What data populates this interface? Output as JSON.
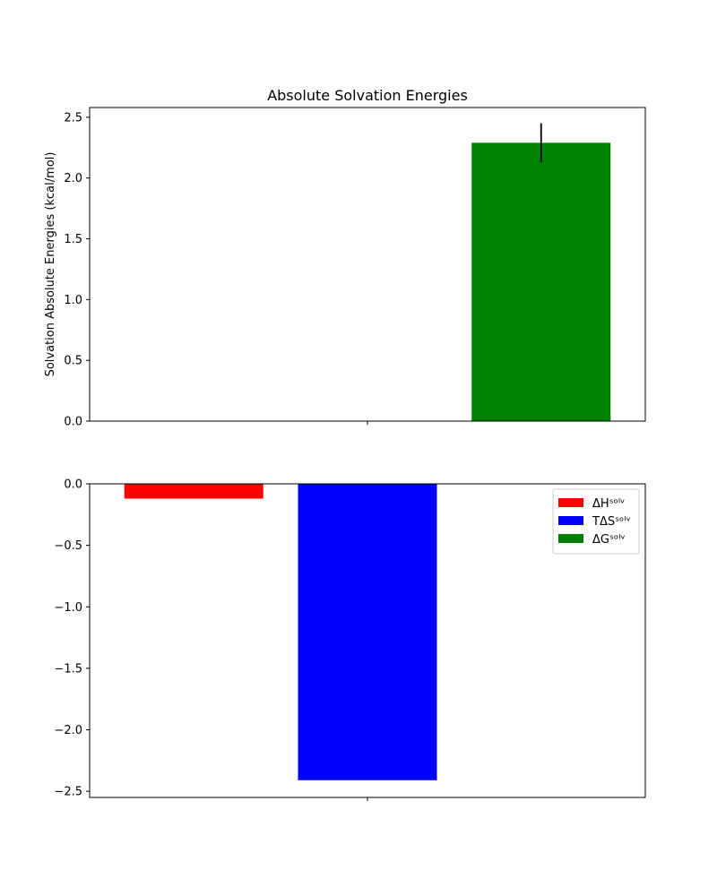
{
  "chart_data": [
    {
      "type": "bar",
      "title": "Absolute Solvation Energies",
      "xlabel": "",
      "ylabel": "Solvation Absolute Energies (kcal/mol)",
      "ylim": [
        0,
        2.58
      ],
      "xlim": [
        -0.6,
        2.6
      ],
      "yticks": [
        0.0,
        0.5,
        1.0,
        1.5,
        2.0,
        2.5
      ],
      "ytick_labels": [
        "0.0",
        "0.5",
        "1.0",
        "1.5",
        "2.0",
        "2.5"
      ],
      "xticks": [
        1.0
      ],
      "grid": false,
      "bars": [
        {
          "x": 2,
          "value": 2.29,
          "error": 0.16,
          "color": "#008000"
        }
      ]
    },
    {
      "type": "bar",
      "title": "",
      "xlabel": "",
      "ylabel": "",
      "ylim": [
        -2.55,
        0.0
      ],
      "xlim": [
        -0.6,
        2.6
      ],
      "yticks": [
        0.0,
        -0.5,
        -1.0,
        -1.5,
        -2.0,
        -2.5
      ],
      "ytick_labels": [
        "0.0",
        "−0.5",
        "−1.0",
        "−1.5",
        "−2.0",
        "−2.5"
      ],
      "xticks": [
        1.0
      ],
      "grid": false,
      "legend_position": "top-right",
      "bars": [
        {
          "x": 0,
          "value": -0.12,
          "color": "#ff0000"
        },
        {
          "x": 1,
          "value": -2.41,
          "color": "#0000ff"
        }
      ],
      "legend": [
        {
          "label": "ΔHˢᵒˡᵛ",
          "color": "#ff0000"
        },
        {
          "label": "TΔSˢᵒˡᵛ",
          "color": "#0000ff"
        },
        {
          "label": "ΔGˢᵒˡᵛ",
          "color": "#008000"
        }
      ]
    }
  ]
}
